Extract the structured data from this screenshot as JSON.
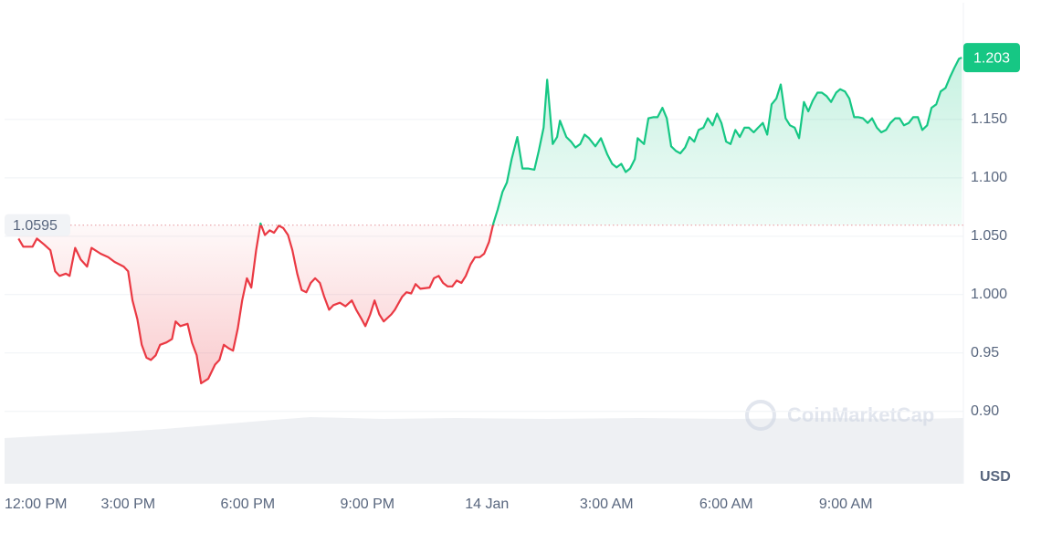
{
  "chart_data": {
    "type": "line",
    "x": [
      0.25,
      0.37,
      0.6,
      0.71,
      0.89,
      1.05,
      1.17,
      1.28,
      1.44,
      1.53,
      1.67,
      1.81,
      1.97,
      2.08,
      2.31,
      2.5,
      2.66,
      2.89,
      3.0,
      3.11,
      3.23,
      3.34,
      3.46,
      3.57,
      3.69,
      3.8,
      3.96,
      4.1,
      4.19,
      4.31,
      4.49,
      4.6,
      4.72,
      4.83,
      5.01,
      5.18,
      5.29,
      5.4,
      5.52,
      5.63,
      5.75,
      5.86,
      5.98,
      6.09,
      6.21,
      6.32,
      6.43,
      6.55,
      6.66,
      6.78,
      6.89,
      7.01,
      7.12,
      7.24,
      7.35,
      7.47,
      7.58,
      7.69,
      7.81,
      7.92,
      8.04,
      8.15,
      8.31,
      8.45,
      8.61,
      8.72,
      8.84,
      8.95,
      9.07,
      9.18,
      9.3,
      9.41,
      9.6,
      9.69,
      9.87,
      9.98,
      10.1,
      10.21,
      10.33,
      10.56,
      10.67,
      10.79,
      10.9,
      11.01,
      11.13,
      11.24,
      11.36,
      11.47,
      11.59,
      11.7,
      11.82,
      11.93,
      12.05,
      12.16,
      12.27,
      12.39,
      12.5,
      12.62,
      12.76,
      12.89,
      13.03,
      13.19,
      13.3,
      13.42,
      13.51,
      13.65,
      13.76,
      13.83,
      13.99,
      14.11,
      14.22,
      14.34,
      14.45,
      14.56,
      14.72,
      14.86,
      15.02,
      15.14,
      15.25,
      15.37,
      15.48,
      15.59,
      15.71,
      15.78,
      15.94,
      16.05,
      16.17,
      16.28,
      16.4,
      16.51,
      16.62,
      16.74,
      16.85,
      16.97,
      17.08,
      17.2,
      17.31,
      17.43,
      17.54,
      17.66,
      17.77,
      17.88,
      18.0,
      18.11,
      18.23,
      18.34,
      18.46,
      18.57,
      18.69,
      18.8,
      18.92,
      19.03,
      19.14,
      19.26,
      19.37,
      19.49,
      19.6,
      19.72,
      19.83,
      19.95,
      20.06,
      20.17,
      20.29,
      20.4,
      20.52,
      20.63,
      20.76,
      20.86,
      20.98,
      21.09,
      21.21,
      21.32,
      21.43,
      21.55,
      21.66,
      21.78,
      21.89,
      22.01,
      22.12,
      22.24,
      22.35,
      22.46,
      22.58,
      22.69,
      22.81,
      22.92,
      23.04,
      23.15,
      23.27,
      23.38,
      23.5,
      23.61,
      23.72,
      23.84,
      23.91
    ],
    "values": [
      1.048,
      1.041,
      1.041,
      1.048,
      1.043,
      1.038,
      1.02,
      1.016,
      1.018,
      1.016,
      1.04,
      1.03,
      1.024,
      1.04,
      1.035,
      1.032,
      1.028,
      1.024,
      1.02,
      0.995,
      0.979,
      0.957,
      0.946,
      0.944,
      0.948,
      0.957,
      0.959,
      0.962,
      0.977,
      0.973,
      0.975,
      0.959,
      0.948,
      0.924,
      0.928,
      0.94,
      0.944,
      0.957,
      0.954,
      0.952,
      0.971,
      0.995,
      1.014,
      1.006,
      1.038,
      1.061,
      1.051,
      1.055,
      1.053,
      1.059,
      1.057,
      1.051,
      1.038,
      1.018,
      1.004,
      1.002,
      1.01,
      1.014,
      1.01,
      0.998,
      0.987,
      0.991,
      0.993,
      0.99,
      0.995,
      0.987,
      0.98,
      0.973,
      0.983,
      0.995,
      0.983,
      0.977,
      0.983,
      0.987,
      0.998,
      1.002,
      1.001,
      1.009,
      1.005,
      1.006,
      1.014,
      1.016,
      1.01,
      1.007,
      1.007,
      1.012,
      1.01,
      1.016,
      1.026,
      1.032,
      1.032,
      1.035,
      1.045,
      1.061,
      1.073,
      1.088,
      1.096,
      1.116,
      1.135,
      1.108,
      1.108,
      1.107,
      1.123,
      1.143,
      1.184,
      1.129,
      1.135,
      1.149,
      1.135,
      1.131,
      1.126,
      1.129,
      1.137,
      1.134,
      1.127,
      1.134,
      1.12,
      1.112,
      1.109,
      1.112,
      1.105,
      1.108,
      1.116,
      1.134,
      1.129,
      1.151,
      1.152,
      1.152,
      1.16,
      1.151,
      1.127,
      1.123,
      1.121,
      1.126,
      1.135,
      1.131,
      1.141,
      1.143,
      1.151,
      1.145,
      1.155,
      1.147,
      1.131,
      1.129,
      1.141,
      1.135,
      1.143,
      1.143,
      1.139,
      1.143,
      1.147,
      1.137,
      1.163,
      1.168,
      1.18,
      1.151,
      1.145,
      1.143,
      1.134,
      1.165,
      1.157,
      1.166,
      1.173,
      1.173,
      1.17,
      1.165,
      1.173,
      1.176,
      1.174,
      1.168,
      1.152,
      1.152,
      1.151,
      1.147,
      1.151,
      1.143,
      1.139,
      1.141,
      1.147,
      1.151,
      1.151,
      1.145,
      1.147,
      1.152,
      1.152,
      1.141,
      1.145,
      1.16,
      1.163,
      1.174,
      1.177,
      1.186,
      1.194,
      1.202,
      1.203
    ],
    "reference": 1.0595,
    "current_price": 1.203,
    "up_color": "#16c784",
    "down_color": "#ea3943",
    "xlim": [
      -0.1,
      23.95
    ],
    "ylim": [
      0.838,
      1.25
    ],
    "xticks": [
      {
        "value": 0,
        "label": "12:00 PM"
      },
      {
        "value": 3,
        "label": "3:00 PM"
      },
      {
        "value": 6,
        "label": "6:00 PM"
      },
      {
        "value": 9,
        "label": "9:00 PM"
      },
      {
        "value": 12,
        "label": "14 Jan"
      },
      {
        "value": 15,
        "label": "3:00 AM"
      },
      {
        "value": 18,
        "label": "6:00 AM"
      },
      {
        "value": 21,
        "label": "9:00 AM"
      }
    ],
    "yticks": [
      {
        "value": 1.15,
        "label": "1.150"
      },
      {
        "value": 1.1,
        "label": "1.100"
      },
      {
        "value": 1.05,
        "label": "1.050"
      },
      {
        "value": 1,
        "label": "1.000"
      },
      0.95,
      {
        "value": 0.9,
        "label": "0.90"
      }
    ],
    "y_unit": "USD",
    "watermark": "CoinMarketCap",
    "grid": true
  }
}
